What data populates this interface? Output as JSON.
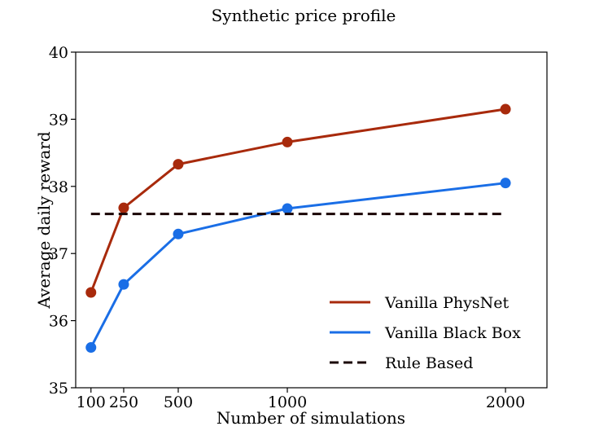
{
  "chart_data": {
    "type": "line",
    "title": "Synthetic price profile",
    "xlabel": "Number of simulations",
    "ylabel": "Average daily reward",
    "x": [
      100,
      250,
      500,
      1000,
      2000
    ],
    "xticks": [
      100,
      250,
      500,
      1000,
      2000
    ],
    "xlim": [
      30,
      2190
    ],
    "ylim": [
      35,
      40
    ],
    "yticks": [
      35,
      36,
      37,
      38,
      39,
      40
    ],
    "grid": false,
    "legend_position": "bottom-right",
    "series": [
      {
        "name": "Vanilla PhysNet",
        "color": "#a82a0c",
        "style": "solid",
        "markers": true,
        "values": [
          36.42,
          37.68,
          38.33,
          38.66,
          39.15
        ]
      },
      {
        "name": "Vanilla Black Box",
        "color": "#1a6ee6",
        "style": "solid",
        "markers": true,
        "values": [
          35.6,
          36.54,
          37.29,
          37.67,
          38.05
        ]
      },
      {
        "name": "Rule Based",
        "color": "#1a0505",
        "style": "dashed",
        "markers": false,
        "values": [
          37.59,
          37.59,
          37.59,
          37.59,
          37.59
        ]
      }
    ]
  }
}
